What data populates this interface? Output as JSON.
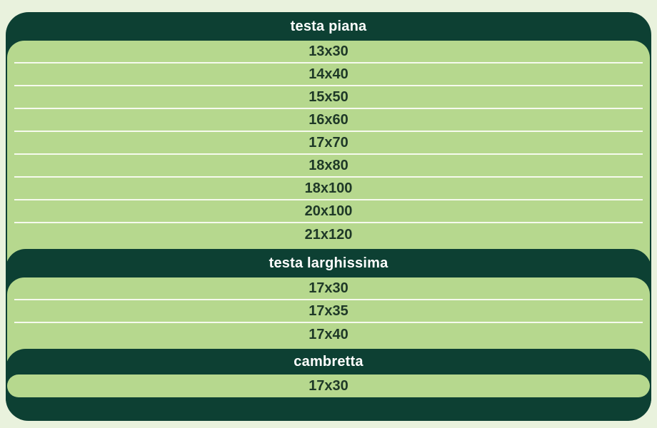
{
  "colors": {
    "page_background": "#e9f2dd",
    "dark_green": "#0d4033",
    "light_green": "#b6d88e",
    "separator": "#f6faee",
    "header_text": "#ffffff",
    "row_text": "#1e3827"
  },
  "sections": [
    {
      "header": "testa piana",
      "rows": [
        "13x30",
        "14x40",
        "15x50",
        "16x60",
        "17x70",
        "18x80",
        "18x100",
        "20x100",
        "21x120"
      ]
    },
    {
      "header": "testa larghissima",
      "rows": [
        "17x30",
        "17x35",
        "17x40"
      ]
    },
    {
      "header": "cambretta",
      "rows": [
        "17x30"
      ]
    }
  ]
}
